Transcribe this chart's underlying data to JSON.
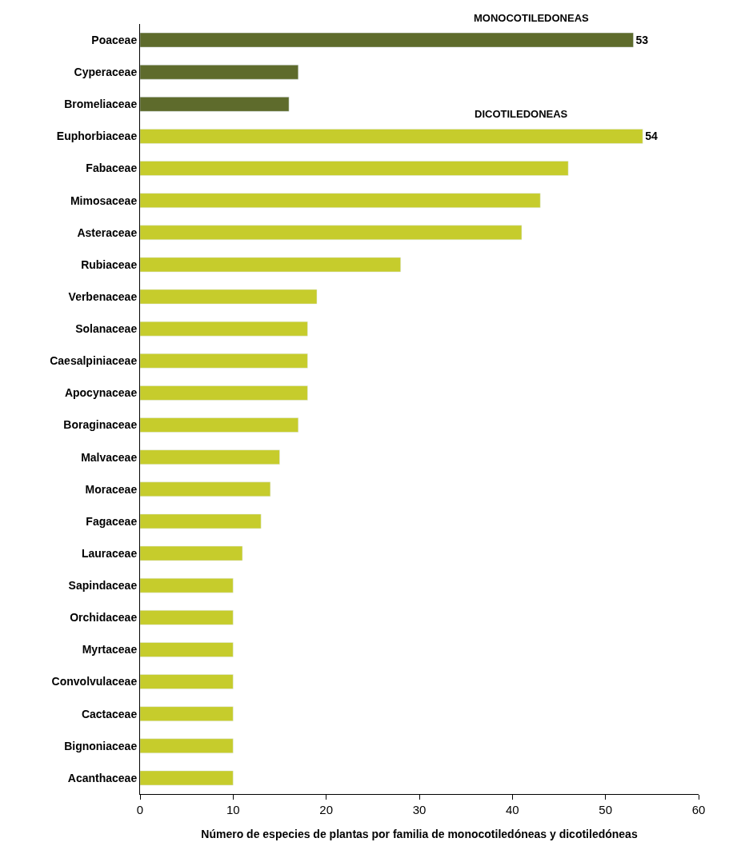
{
  "chart_data": {
    "type": "bar",
    "orientation": "horizontal",
    "xlabel": "Número de especies de plantas por familia de monocotiledóneas y dicotiledóneas",
    "categories": [
      "Poaceae",
      "Cyperaceae",
      "Bromeliaceae",
      "Euphorbiaceae",
      "Fabaceae",
      "Mimosaceae",
      "Asteraceae",
      "Rubiaceae",
      "Verbenaceae",
      "Solanaceae",
      "Caesalpiniaceae",
      "Apocynaceae",
      "Boraginaceae",
      "Malvaceae",
      "Moraceae",
      "Fagaceae",
      "Lauraceae",
      "Sapindaceae",
      "Orchidaceae",
      "Myrtaceae",
      "Convolvulaceae",
      "Cactaceae",
      "Bignoniaceae",
      "Acanthaceae"
    ],
    "values": [
      53,
      17,
      16,
      54,
      46,
      43,
      41,
      28,
      19,
      18,
      18,
      18,
      17,
      15,
      14,
      13,
      11,
      10,
      10,
      10,
      10,
      10,
      10,
      10
    ],
    "value_labels": [
      "53",
      null,
      null,
      "54",
      null,
      null,
      null,
      null,
      null,
      null,
      null,
      null,
      null,
      null,
      null,
      null,
      null,
      null,
      null,
      null,
      null,
      null,
      null,
      null
    ],
    "colors": [
      "#5e6b2c",
      "#5e6b2c",
      "#5e6b2c",
      "#c6cc2c",
      "#c6cc2c",
      "#c6cc2c",
      "#c6cc2c",
      "#c6cc2c",
      "#c6cc2c",
      "#c6cc2c",
      "#c6cc2c",
      "#c6cc2c",
      "#c6cc2c",
      "#c6cc2c",
      "#c6cc2c",
      "#c6cc2c",
      "#c6cc2c",
      "#c6cc2c",
      "#c6cc2c",
      "#c6cc2c",
      "#c6cc2c",
      "#c6cc2c",
      "#c6cc2c",
      "#c6cc2c"
    ],
    "annotations": [
      "MONOCOTILEDONEAS",
      "DICOTILEDONEAS"
    ],
    "xlim": [
      0,
      60
    ],
    "xticks": [
      0,
      10,
      20,
      30,
      40,
      50,
      60
    ]
  }
}
